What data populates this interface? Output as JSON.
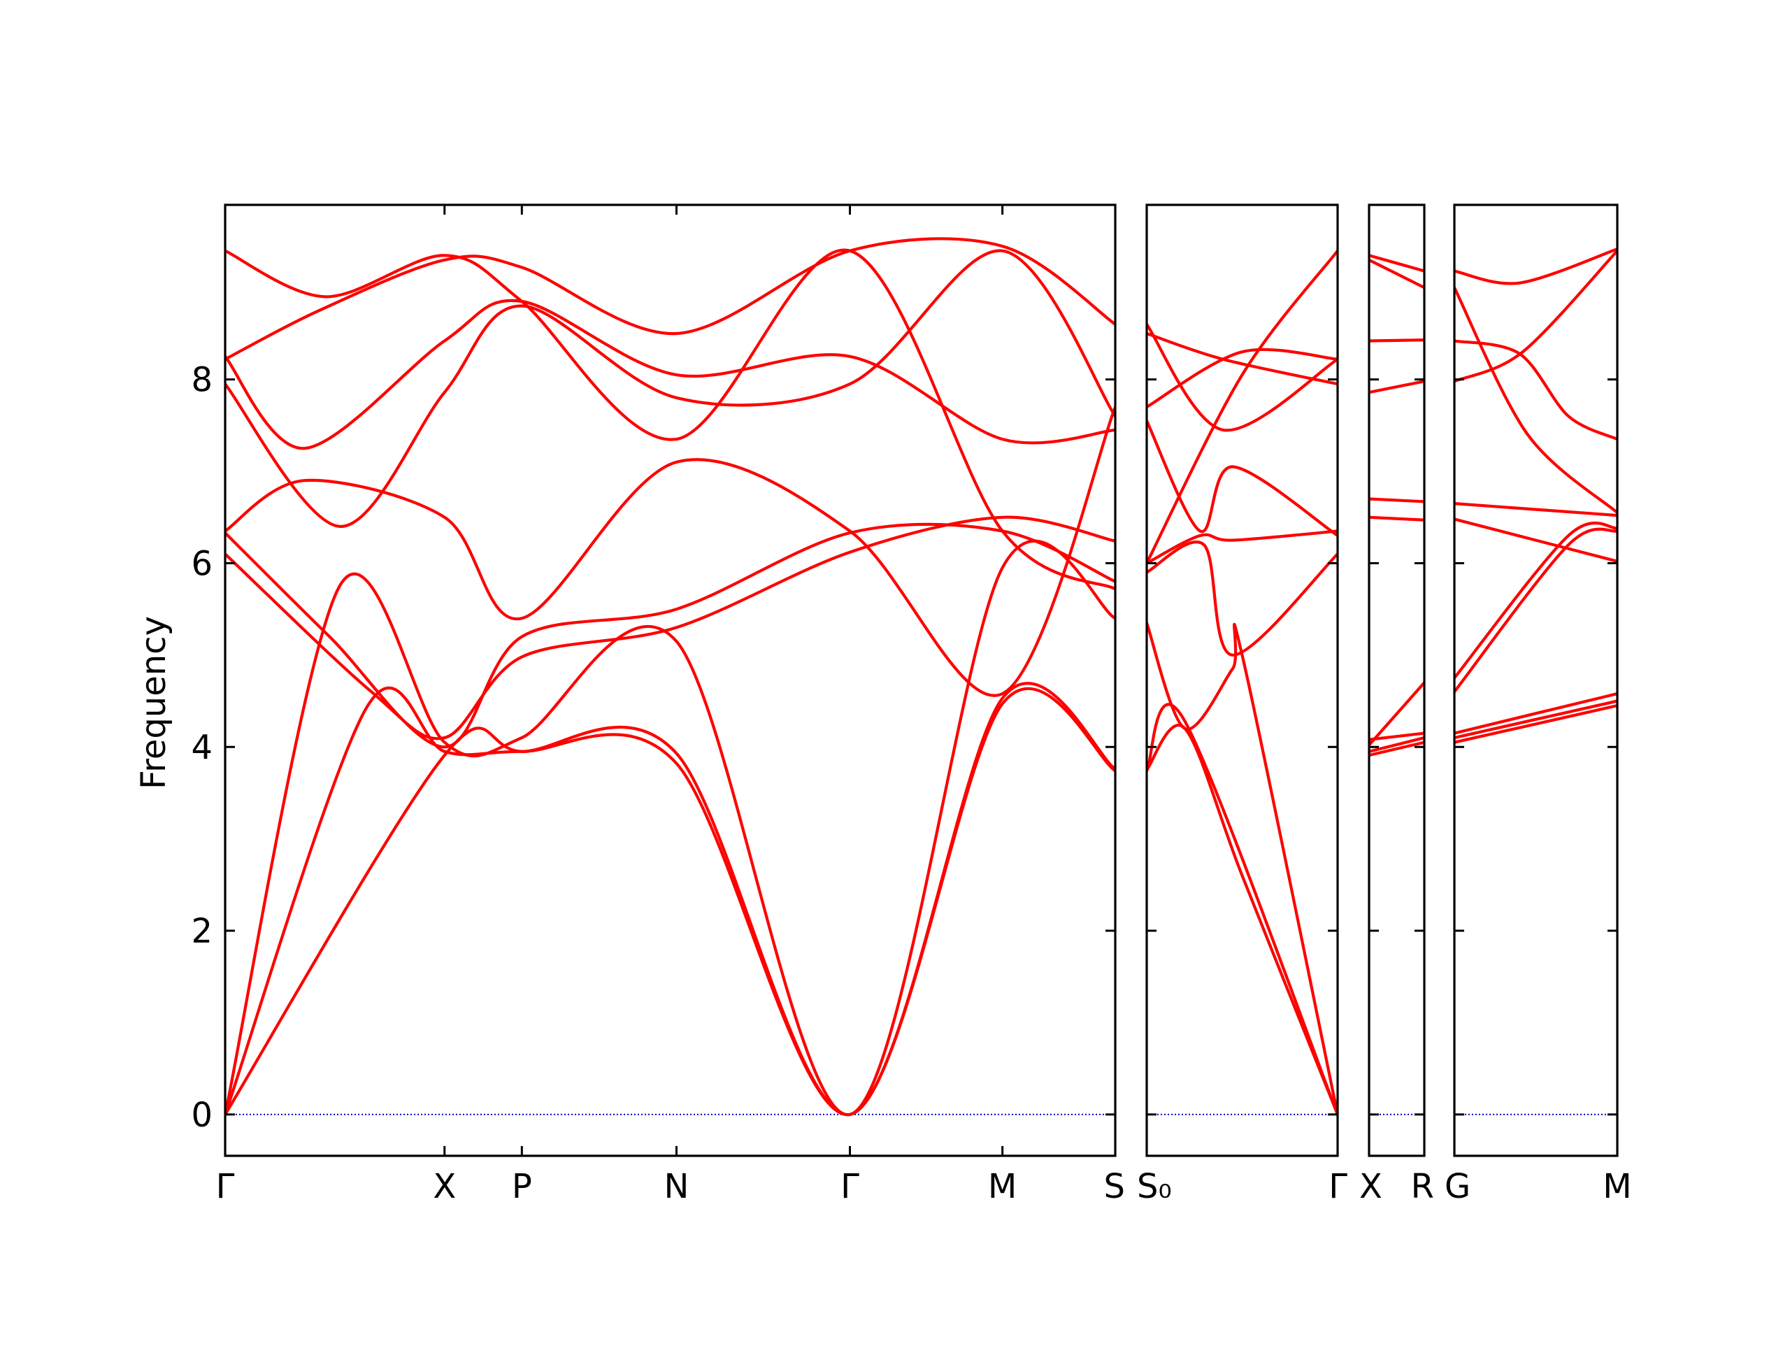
{
  "chart_data": {
    "type": "line",
    "ylabel": "Frequency",
    "xlabel": "",
    "ylim": [
      -0.45,
      9.9
    ],
    "yticks": [
      0,
      2,
      4,
      6,
      8
    ],
    "ytick_labels": [
      "0",
      "2",
      "4",
      "6",
      "8"
    ],
    "grid": false,
    "line_color": "#ff0000",
    "zero_line_color": "#0000cc",
    "panels": [
      {
        "x_range": [
          0,
          4.26
        ],
        "tick_positions": [
          0,
          1.05,
          1.42,
          2.16,
          2.99,
          3.72,
          4.26
        ],
        "tick_labels": [
          "Γ",
          "X",
          "P",
          "N",
          "Γ",
          "M",
          "S"
        ],
        "bands": [
          {
            "x": [
              0,
              1.05,
              1.42,
              2.16,
              2.99,
              3.72,
              4.26
            ],
            "y": [
              0,
              3.91,
              3.95,
              3.82,
              0,
              4.47,
              3.74
            ]
          },
          {
            "x": [
              0,
              0.68,
              1.05,
              1.42,
              2.16,
              2.99,
              3.72,
              4.26
            ],
            "y": [
              0,
              4.44,
              3.95,
              3.95,
              3.93,
              0,
              4.53,
              3.76
            ]
          },
          {
            "x": [
              0,
              0.55,
              1.05,
              1.42,
              2.16,
              2.99,
              3.72,
              4.26
            ],
            "y": [
              0,
              5.76,
              4.05,
              4.1,
              5.15,
              0,
              5.95,
              5.4
            ]
          },
          {
            "x": [
              0,
              0.7,
              1.05,
              1.42,
              2.16,
              2.99,
              3.72,
              4.26
            ],
            "y": [
              6.1,
              4.6,
              4.1,
              4.98,
              5.3,
              6.12,
              6.5,
              6.24
            ]
          },
          {
            "x": [
              0,
              0.5,
              1.05,
              1.42,
              2.16,
              2.99,
              3.72,
              4.26
            ],
            "y": [
              6.33,
              5.2,
              4.0,
              5.2,
              5.5,
              6.33,
              6.35,
              5.8
            ]
          },
          {
            "x": [
              0,
              0.38,
              1.05,
              1.42,
              2.16,
              2.99,
              3.72,
              4.26
            ],
            "y": [
              6.35,
              6.9,
              6.5,
              5.4,
              7.1,
              6.35,
              4.58,
              7.7
            ]
          },
          {
            "x": [
              0,
              0.55,
              1.05,
              1.42,
              2.16,
              2.99,
              3.72,
              4.26
            ],
            "y": [
              7.95,
              6.4,
              7.86,
              8.8,
              7.8,
              7.95,
              9.4,
              7.6
            ]
          },
          {
            "x": [
              0,
              0.38,
              1.05,
              1.42,
              2.16,
              2.99,
              3.72,
              4.26
            ],
            "y": [
              8.25,
              7.25,
              8.42,
              8.85,
              8.05,
              8.25,
              7.35,
              7.45
            ]
          },
          {
            "x": [
              0,
              0.45,
              1.05,
              1.42,
              2.16,
              2.99,
              3.72,
              4.26
            ],
            "y": [
              8.22,
              8.75,
              9.3,
              9.22,
              8.5,
              9.4,
              9.45,
              8.6
            ]
          },
          {
            "x": [
              0,
              0.48,
              1.05,
              1.42,
              2.16,
              2.99,
              3.72,
              4.26
            ],
            "y": [
              9.4,
              8.9,
              9.35,
              8.85,
              7.35,
              9.4,
              6.35,
              5.72
            ]
          }
        ]
      },
      {
        "x_range": [
          0,
          1.0
        ],
        "tick_positions": [
          0,
          1.0
        ],
        "tick_labels": [
          "S₀",
          "Γ"
        ],
        "bands": [
          {
            "x": [
              0,
              0.2,
              1.0
            ],
            "y": [
              3.74,
              4.28,
              0
            ]
          },
          {
            "x": [
              0,
              0.2,
              0.5,
              1.0
            ],
            "y": [
              3.75,
              4.2,
              2.6,
              0
            ]
          },
          {
            "x": [
              0,
              0.2,
              0.45,
              0.5,
              1.0
            ],
            "y": [
              5.35,
              4.2,
              4.85,
              5.0,
              0
            ]
          },
          {
            "x": [
              0,
              0.3,
              0.45,
              1.0
            ],
            "y": [
              5.9,
              6.2,
              5.0,
              6.1
            ]
          },
          {
            "x": [
              0,
              0.28,
              0.45,
              1.0
            ],
            "y": [
              6.0,
              6.3,
              6.25,
              6.35
            ]
          },
          {
            "x": [
              0,
              0.28,
              0.45,
              1.0
            ],
            "y": [
              7.55,
              6.35,
              7.05,
              6.3
            ]
          },
          {
            "x": [
              0,
              0.4,
              1.0
            ],
            "y": [
              8.6,
              7.45,
              8.22
            ]
          },
          {
            "x": [
              0,
              0.5,
              1.0
            ],
            "y": [
              7.7,
              8.3,
              8.22
            ]
          },
          {
            "x": [
              0,
              0.4,
              1.0
            ],
            "y": [
              8.5,
              8.22,
              7.95
            ]
          },
          {
            "x": [
              0,
              0.5,
              1.0
            ],
            "y": [
              6.0,
              8.05,
              9.4
            ]
          }
        ]
      },
      {
        "x_range": [
          0,
          1.0
        ],
        "tick_positions": [
          0,
          1.0
        ],
        "tick_labels": [
          "X",
          "R"
        ],
        "bands": [
          {
            "x": [
              0,
              1.0
            ],
            "y": [
              3.91,
              4.05
            ]
          },
          {
            "x": [
              0,
              1.0
            ],
            "y": [
              3.95,
              4.1
            ]
          },
          {
            "x": [
              0,
              1.0
            ],
            "y": [
              4.02,
              4.7
            ]
          },
          {
            "x": [
              0,
              1.0
            ],
            "y": [
              4.08,
              4.15
            ]
          },
          {
            "x": [
              0,
              1.0
            ],
            "y": [
              6.5,
              6.47
            ]
          },
          {
            "x": [
              0,
              1.0
            ],
            "y": [
              6.7,
              6.67
            ]
          },
          {
            "x": [
              0,
              1.0
            ],
            "y": [
              7.86,
              7.98
            ]
          },
          {
            "x": [
              0,
              1.0
            ],
            "y": [
              8.42,
              8.43
            ]
          },
          {
            "x": [
              0,
              1.0
            ],
            "y": [
              9.3,
              9.0
            ]
          },
          {
            "x": [
              0,
              1.0
            ],
            "y": [
              9.35,
              9.18
            ]
          }
        ]
      },
      {
        "x_range": [
          0,
          1.0
        ],
        "tick_positions": [
          0,
          1.0
        ],
        "tick_labels": [
          "G",
          "M"
        ],
        "bands": [
          {
            "x": [
              0,
              1.0
            ],
            "y": [
              4.05,
              4.45
            ]
          },
          {
            "x": [
              0,
              1.0
            ],
            "y": [
              4.1,
              4.5
            ]
          },
          {
            "x": [
              0,
              1.0
            ],
            "y": [
              4.15,
              4.58
            ]
          },
          {
            "x": [
              0,
              0.7,
              1.0
            ],
            "y": [
              4.6,
              6.2,
              6.35
            ]
          },
          {
            "x": [
              0,
              0.7,
              1.0
            ],
            "y": [
              4.75,
              6.3,
              6.38
            ]
          },
          {
            "x": [
              0,
              1.0
            ],
            "y": [
              6.48,
              6.02
            ]
          },
          {
            "x": [
              0,
              1.0
            ],
            "y": [
              6.65,
              6.52
            ]
          },
          {
            "x": [
              0,
              0.42,
              1.0
            ],
            "y": [
              7.98,
              8.3,
              9.4
            ]
          },
          {
            "x": [
              0,
              0.4,
              0.7,
              1.0
            ],
            "y": [
              8.42,
              8.28,
              7.6,
              7.35
            ]
          },
          {
            "x": [
              0,
              0.45,
              1.0
            ],
            "y": [
              9.0,
              7.4,
              6.55
            ]
          },
          {
            "x": [
              0,
              0.4,
              1.0
            ],
            "y": [
              9.18,
              9.05,
              9.42
            ]
          }
        ]
      }
    ]
  }
}
